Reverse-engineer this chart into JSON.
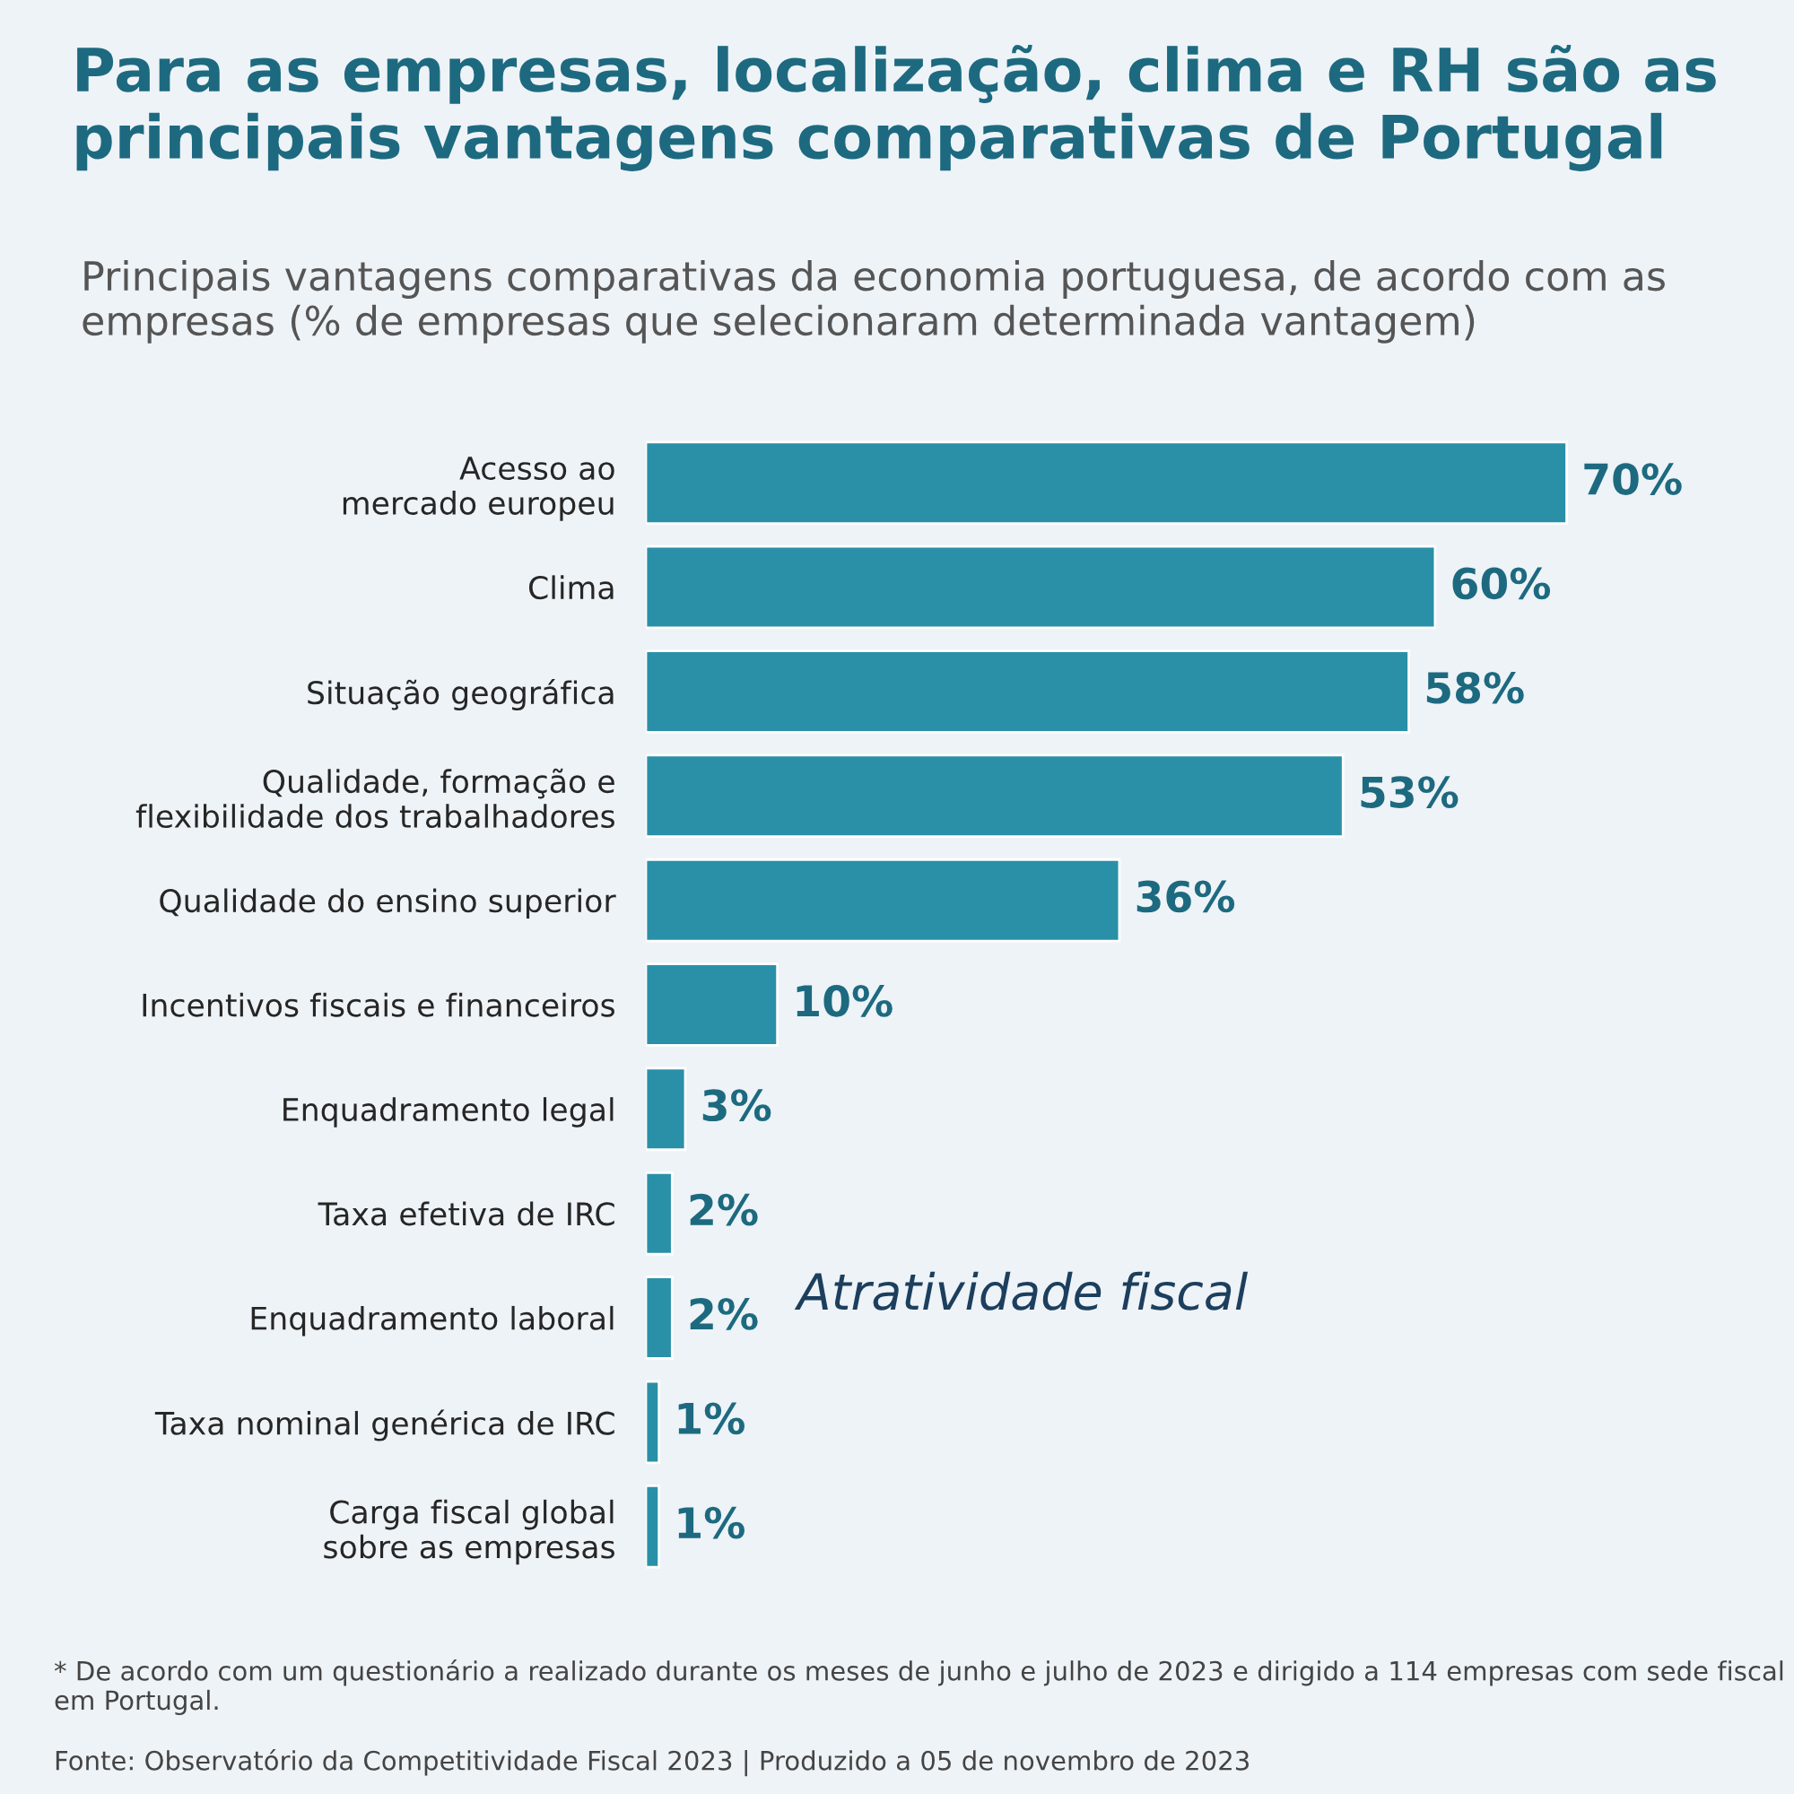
{
  "chart_data": {
    "type": "bar",
    "orientation": "horizontal",
    "title": "Para as empresas, localização, clima e RH são as principais vantagens comparativas de Portugal",
    "subtitle": "Principais vantagens comparativas da economia portuguesa, de acordo com as empresas (% de empresas que selecionaram determinada vantagem)",
    "categories": [
      "Acesso ao\nmercado europeu",
      "Clima",
      "Situação geográfica",
      "Qualidade, formação e\nflexibilidade dos trabalhadores",
      "Qualidade do ensino superior",
      "Incentivos fiscais e financeiros",
      "Enquadramento legal",
      "Taxa efetiva de IRC",
      "Enquadramento laboral",
      "Taxa nominal genérica de IRC",
      "Carga fiscal global\nsobre as empresas"
    ],
    "values": [
      70,
      60,
      58,
      53,
      36,
      10,
      3,
      2,
      2,
      1,
      1
    ],
    "value_labels": [
      "70%",
      "60%",
      "58%",
      "53%",
      "36%",
      "10%",
      "3%",
      "2%",
      "2%",
      "1%",
      "1%"
    ],
    "color": "#2a90a8",
    "annotations": [
      "Atratividade fiscal",
      "* De acordo com um questionário a realizado durante os meses de junho e julho de 2023 e dirigido a 114 empresas com sede fiscal em Portugal.",
      "Fonte: Observatório da Competitividade Fiscal 2023 | Produzido a 05 de novembro de 2023"
    ],
    "grid": false,
    "legend": false,
    "tick_labels": "y"
  }
}
